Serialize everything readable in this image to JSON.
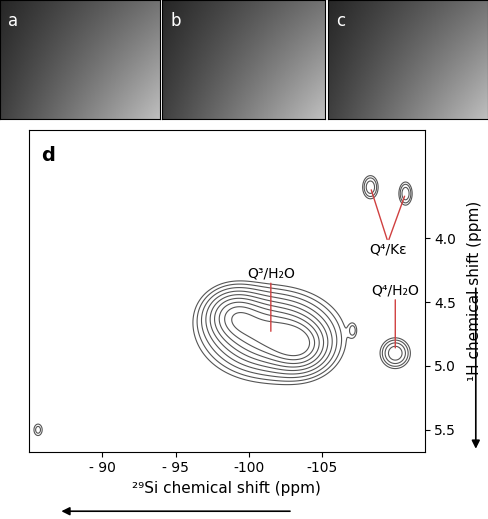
{
  "panels": [
    {
      "label": "a"
    },
    {
      "label": "b"
    },
    {
      "label": "c"
    }
  ],
  "chart_data": {
    "type": "contour",
    "panel_label": "d",
    "x_label": "²⁹Si chemical shift (ppm)",
    "y_label": "¹H chemical shift (ppm)",
    "xlim": [
      -85,
      -112
    ],
    "ylim": [
      5.67,
      3.15
    ],
    "xticks": [
      {
        "value": -90,
        "label": "- 90"
      },
      {
        "value": -95,
        "label": "- 95"
      },
      {
        "value": -100,
        "label": "-100"
      },
      {
        "value": -105,
        "label": "-105"
      }
    ],
    "yticks": [
      4.0,
      4.5,
      5.0,
      5.5
    ],
    "yticks_labels": [
      "4.0",
      "4.5",
      "5.0",
      "5.5"
    ],
    "color": "#555555",
    "peaks": [
      {
        "x": -101.5,
        "y": 4.75,
        "x_width": 2.2,
        "y_width": 0.17,
        "amplitude": 1.0
      },
      {
        "x": -99.0,
        "y": 4.6,
        "x_width": 1.2,
        "y_width": 0.12,
        "amplitude": 0.6
      },
      {
        "x": -103.5,
        "y": 4.85,
        "x_width": 1.2,
        "y_width": 0.12,
        "amplitude": 0.6
      },
      {
        "x": -110.0,
        "y": 4.9,
        "x_width": 0.6,
        "y_width": 0.07,
        "amplitude": 0.35
      },
      {
        "x": -108.3,
        "y": 3.6,
        "x_width": 0.35,
        "y_width": 0.06,
        "amplitude": 0.25
      },
      {
        "x": -110.7,
        "y": 3.65,
        "x_width": 0.3,
        "y_width": 0.06,
        "amplitude": 0.25
      },
      {
        "x": -107.1,
        "y": 4.72,
        "x_width": 0.2,
        "y_width": 0.04,
        "amplitude": 0.12
      },
      {
        "x": -85.6,
        "y": 5.5,
        "x_width": 0.25,
        "y_width": 0.04,
        "amplitude": 0.15
      }
    ],
    "contour_levels": [
      0.08,
      0.12,
      0.18,
      0.26,
      0.36,
      0.48,
      0.62,
      0.78,
      0.95
    ],
    "annotations": [
      {
        "text": "Q³/H₂O",
        "points": [
          [
            -101.5,
            4.75
          ]
        ],
        "color": "#d04040"
      },
      {
        "text": "Q⁴/Kε",
        "points": [
          [
            -108.3,
            3.6
          ],
          [
            -110.7,
            3.65
          ]
        ],
        "color": "#d04040"
      },
      {
        "text": "Q⁴/H₂O",
        "points": [
          [
            -110.0,
            4.88
          ]
        ],
        "color": "#d04040"
      }
    ]
  }
}
